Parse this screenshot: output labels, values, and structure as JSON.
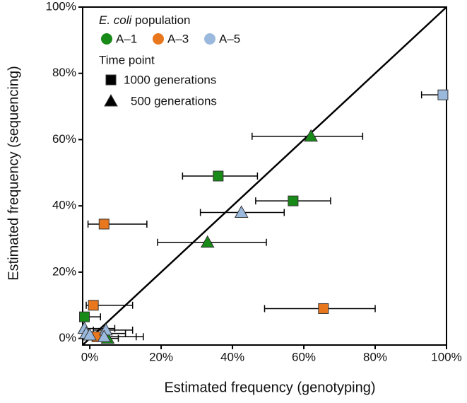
{
  "chart_data": {
    "type": "scatter",
    "x_label": "Estimated frequency (genotyping)",
    "y_label": "Estimated frequency (sequencing)",
    "xlim": [
      -2,
      100
    ],
    "ylim": [
      -2,
      100
    ],
    "xticks": [
      {
        "value": 0,
        "label": "0%"
      },
      {
        "value": 20,
        "label": "20%"
      },
      {
        "value": 40,
        "label": "40%"
      },
      {
        "value": 60,
        "label": "60%"
      },
      {
        "value": 80,
        "label": "80%"
      },
      {
        "value": 100,
        "label": "100%"
      }
    ],
    "yticks": [
      {
        "value": 0,
        "label": "0%"
      },
      {
        "value": 20,
        "label": "20%"
      },
      {
        "value": 40,
        "label": "40%"
      },
      {
        "value": 60,
        "label": "60%"
      },
      {
        "value": 80,
        "label": "80%"
      },
      {
        "value": 100,
        "label": "100%"
      }
    ],
    "identity_line": true,
    "legend_title_italic": "E. coli",
    "legend_title": "population",
    "marker_legend_title": "Time point",
    "marker_legend": [
      {
        "marker": "square",
        "label": "1000 generations"
      },
      {
        "marker": "triangle",
        "label": "500 generations"
      }
    ],
    "series": [
      {
        "name": "A–1",
        "color": "#178a17",
        "x": [
          36,
          62,
          57,
          33,
          -1.5,
          5
        ],
        "y": [
          49,
          61,
          41.5,
          29,
          6.5,
          0
        ],
        "x_low": [
          26,
          45.5,
          46.5,
          19,
          -2,
          3
        ],
        "x_high": [
          47,
          76.5,
          67.5,
          49.5,
          3,
          8
        ],
        "markers": [
          "square",
          "triangle",
          "square",
          "triangle",
          "square",
          "triangle"
        ]
      },
      {
        "name": "A–3",
        "color": "#e8771e",
        "x": [
          4,
          1,
          65.5,
          2
        ],
        "y": [
          34.5,
          10,
          9,
          0.5
        ],
        "x_low": [
          -0.5,
          -1,
          49,
          0
        ],
        "x_high": [
          16,
          12,
          80,
          13
        ],
        "markers": [
          "square",
          "square",
          "square",
          "square"
        ]
      },
      {
        "name": "A–5",
        "color": "#9bb9dd",
        "x": [
          99,
          42.5,
          -1.5,
          -1,
          4.5,
          4,
          0
        ],
        "y": [
          73.5,
          38,
          3,
          1.5,
          2.5,
          0.5,
          1
        ],
        "x_low": [
          93,
          31,
          -2,
          -2,
          1,
          1,
          -1
        ],
        "x_high": [
          99,
          54.5,
          7,
          10,
          12,
          15,
          5
        ],
        "markers": [
          "square",
          "triangle",
          "triangle",
          "triangle",
          "triangle",
          "triangle",
          "triangle"
        ]
      }
    ]
  }
}
